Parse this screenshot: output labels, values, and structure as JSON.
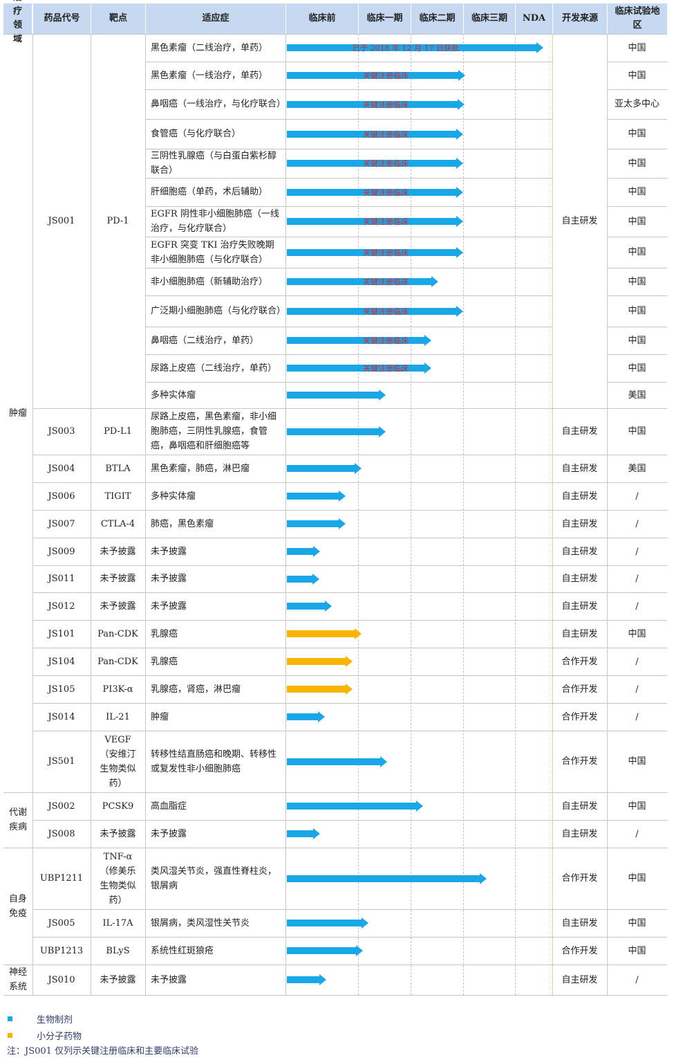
{
  "headers": [
    "治疗领域",
    "药品代号",
    "靶点",
    "适应症",
    "临床前",
    "临床一期",
    "临床二期",
    "临床三期",
    "NDA",
    "开发来源",
    "临床试验地区"
  ],
  "colors": {
    "biologic": "#1aa7e8",
    "small_molecule": "#f7b500",
    "header_bg": "#c6d9f1",
    "arrow_label": "#d8262c"
  },
  "areas": [
    {
      "name": "肿瘤"
    },
    {
      "name": "代谢疾病"
    },
    {
      "name": "自身免疫"
    },
    {
      "name": "神经系统"
    }
  ],
  "drugs": [
    {
      "code": "JS001",
      "target": "PD-1",
      "source": "自主研发"
    },
    {
      "code": "JS003",
      "target": "PD-L1",
      "source": "自主研发"
    },
    {
      "code": "JS004",
      "target": "BTLA",
      "source": "自主研发"
    },
    {
      "code": "JS006",
      "target": "TIGIT",
      "source": "自主研发"
    },
    {
      "code": "JS007",
      "target": "CTLA-4",
      "source": "自主研发"
    },
    {
      "code": "JS009",
      "target": "未予披露",
      "source": "自主研发"
    },
    {
      "code": "JS011",
      "target": "未予披露",
      "source": "自主研发"
    },
    {
      "code": "JS012",
      "target": "未予披露",
      "source": "自主研发"
    },
    {
      "code": "JS101",
      "target": "Pan-CDK",
      "source": "自主研发"
    },
    {
      "code": "JS104",
      "target": "Pan-CDK",
      "source": "合作开发"
    },
    {
      "code": "JS105",
      "target": "PI3K-α",
      "source": "合作开发"
    },
    {
      "code": "JS014",
      "target": "IL-21",
      "source": "合作开发"
    },
    {
      "code": "JS501",
      "target": "VEGF（安维汀生物类似药）",
      "source": "合作开发"
    },
    {
      "code": "JS002",
      "target": "PCSK9",
      "source": "自主研发"
    },
    {
      "code": "JS008",
      "target": "未予披露",
      "source": "自主研发"
    },
    {
      "code": "UBP1211",
      "target": "TNF-α（修美乐生物类似药）",
      "source": "合作开发"
    },
    {
      "code": "JS005",
      "target": "IL-17A",
      "source": "自主研发"
    },
    {
      "code": "UBP1213",
      "target": "BLyS",
      "source": "合作开发"
    },
    {
      "code": "JS010",
      "target": "未予披露",
      "source": "自主研发"
    }
  ],
  "rows": [
    {
      "indication": "黑色素瘤（二线治疗，单药）",
      "region": "中国",
      "kind": "biologic",
      "progress": 4.75,
      "label": "已于 2018 年 12 月 17 日获批"
    },
    {
      "indication": "黑色素瘤（一线治疗，单药）",
      "region": "中国",
      "kind": "biologic",
      "progress": 3.04,
      "label": "关键注册临床"
    },
    {
      "indication": "鼻咽癌（一线治疗，与化疗联合）",
      "region": "亚太多中心",
      "kind": "biologic",
      "progress": 3.02,
      "label": "关键注册临床"
    },
    {
      "indication": "食管癌（与化疗联合）",
      "region": "中国",
      "kind": "biologic",
      "progress": 3.0,
      "label": "关键注册临床"
    },
    {
      "indication": "三阴性乳腺癌（与白蛋白紫杉醇联合）",
      "region": "中国",
      "kind": "biologic",
      "progress": 3.0,
      "label": "关键注册临床"
    },
    {
      "indication": "肝细胞癌（单药，术后辅助）",
      "region": "中国",
      "kind": "biologic",
      "progress": 3.0,
      "label": "关键注册临床"
    },
    {
      "indication": "EGFR 阴性非小细胞肺癌（一线治疗，与化疗联合）",
      "region": "中国",
      "kind": "biologic",
      "progress": 3.0,
      "label": "关键注册临床"
    },
    {
      "indication": "EGFR 突变 TKI 治疗失败晚期非小细胞肺癌（与化疗联合）",
      "region": "中国",
      "kind": "biologic",
      "progress": 3.0,
      "label": "关键注册临床"
    },
    {
      "indication": "非小细胞肺癌（新辅助治疗）",
      "region": "中国",
      "kind": "biologic",
      "progress": 2.52,
      "label": "关键注册临床"
    },
    {
      "indication": "广泛期小细胞肺癌（与化疗联合）",
      "region": "中国",
      "kind": "biologic",
      "progress": 3.0,
      "label": "关键注册临床"
    },
    {
      "indication": "鼻咽癌（二线治疗，单药）",
      "region": "中国",
      "kind": "biologic",
      "progress": 2.4,
      "label": "关键注册临床"
    },
    {
      "indication": "尿路上皮癌（二线治疗，单药）",
      "region": "中国",
      "kind": "biologic",
      "progress": 2.4,
      "label": "关键注册临床"
    },
    {
      "indication": "多种实体瘤",
      "region": "美国",
      "kind": "biologic",
      "progress": 1.53,
      "label": ""
    },
    {
      "indication": "尿路上皮癌，黑色素瘤，非小细胞肺癌，三阴性乳腺癌，食管癌，鼻咽癌和肝细胞癌等",
      "region": "中国",
      "kind": "biologic",
      "progress": 1.53,
      "label": ""
    },
    {
      "indication": "黑色素瘤，肺癌，淋巴瘤",
      "region": "美国",
      "kind": "biologic",
      "progress": 1.07,
      "label": ""
    },
    {
      "indication": "多种实体瘤",
      "region": "/",
      "kind": "biologic",
      "progress": 0.83,
      "label": ""
    },
    {
      "indication": "肺癌，黑色素瘤",
      "region": "/",
      "kind": "biologic",
      "progress": 0.83,
      "label": ""
    },
    {
      "indication": "未予披露",
      "region": "/",
      "kind": "biologic",
      "progress": 0.48,
      "label": ""
    },
    {
      "indication": "未予披露",
      "region": "/",
      "kind": "biologic",
      "progress": 0.47,
      "label": ""
    },
    {
      "indication": "未予披露",
      "region": "/",
      "kind": "biologic",
      "progress": 0.64,
      "label": ""
    },
    {
      "indication": "乳腺癌",
      "region": "中国",
      "kind": "small_molecule",
      "progress": 1.06,
      "label": ""
    },
    {
      "indication": "乳腺癌",
      "region": "/",
      "kind": "small_molecule",
      "progress": 0.92,
      "label": ""
    },
    {
      "indication": "乳腺癌，肾癌，淋巴瘤",
      "region": "/",
      "kind": "small_molecule",
      "progress": 0.92,
      "label": ""
    },
    {
      "indication": "肿瘤",
      "region": "/",
      "kind": "biologic",
      "progress": 0.54,
      "label": ""
    },
    {
      "indication": "转移性结直肠癌和晚期、转移性或复发性非小细胞肺癌",
      "region": "中国",
      "kind": "biologic",
      "progress": 1.55,
      "label": ""
    },
    {
      "indication": "高血脂症",
      "region": "中国",
      "kind": "biologic",
      "progress": 2.24,
      "label": ""
    },
    {
      "indication": "未予披露",
      "region": "/",
      "kind": "biologic",
      "progress": 0.48,
      "label": ""
    },
    {
      "indication": "类风湿关节炎，强直性脊柱炎，银屑病",
      "region": "中国",
      "kind": "biologic",
      "progress": 3.45,
      "label": ""
    },
    {
      "indication": "银屑病，类风湿性关节炎",
      "region": "中国",
      "kind": "biologic",
      "progress": 1.2,
      "label": ""
    },
    {
      "indication": "系统性红斑狼疮",
      "region": "中国",
      "kind": "biologic",
      "progress": 1.09,
      "label": ""
    },
    {
      "indication": "未予披露",
      "region": "/",
      "kind": "biologic",
      "progress": 0.56,
      "label": ""
    }
  ],
  "legend": [
    {
      "label": "生物制剂",
      "kind": "biologic"
    },
    {
      "label": "小分子药物",
      "kind": "small_molecule"
    }
  ],
  "note": "注：JS001 仅列示关键注册临床和主要临床试验"
}
